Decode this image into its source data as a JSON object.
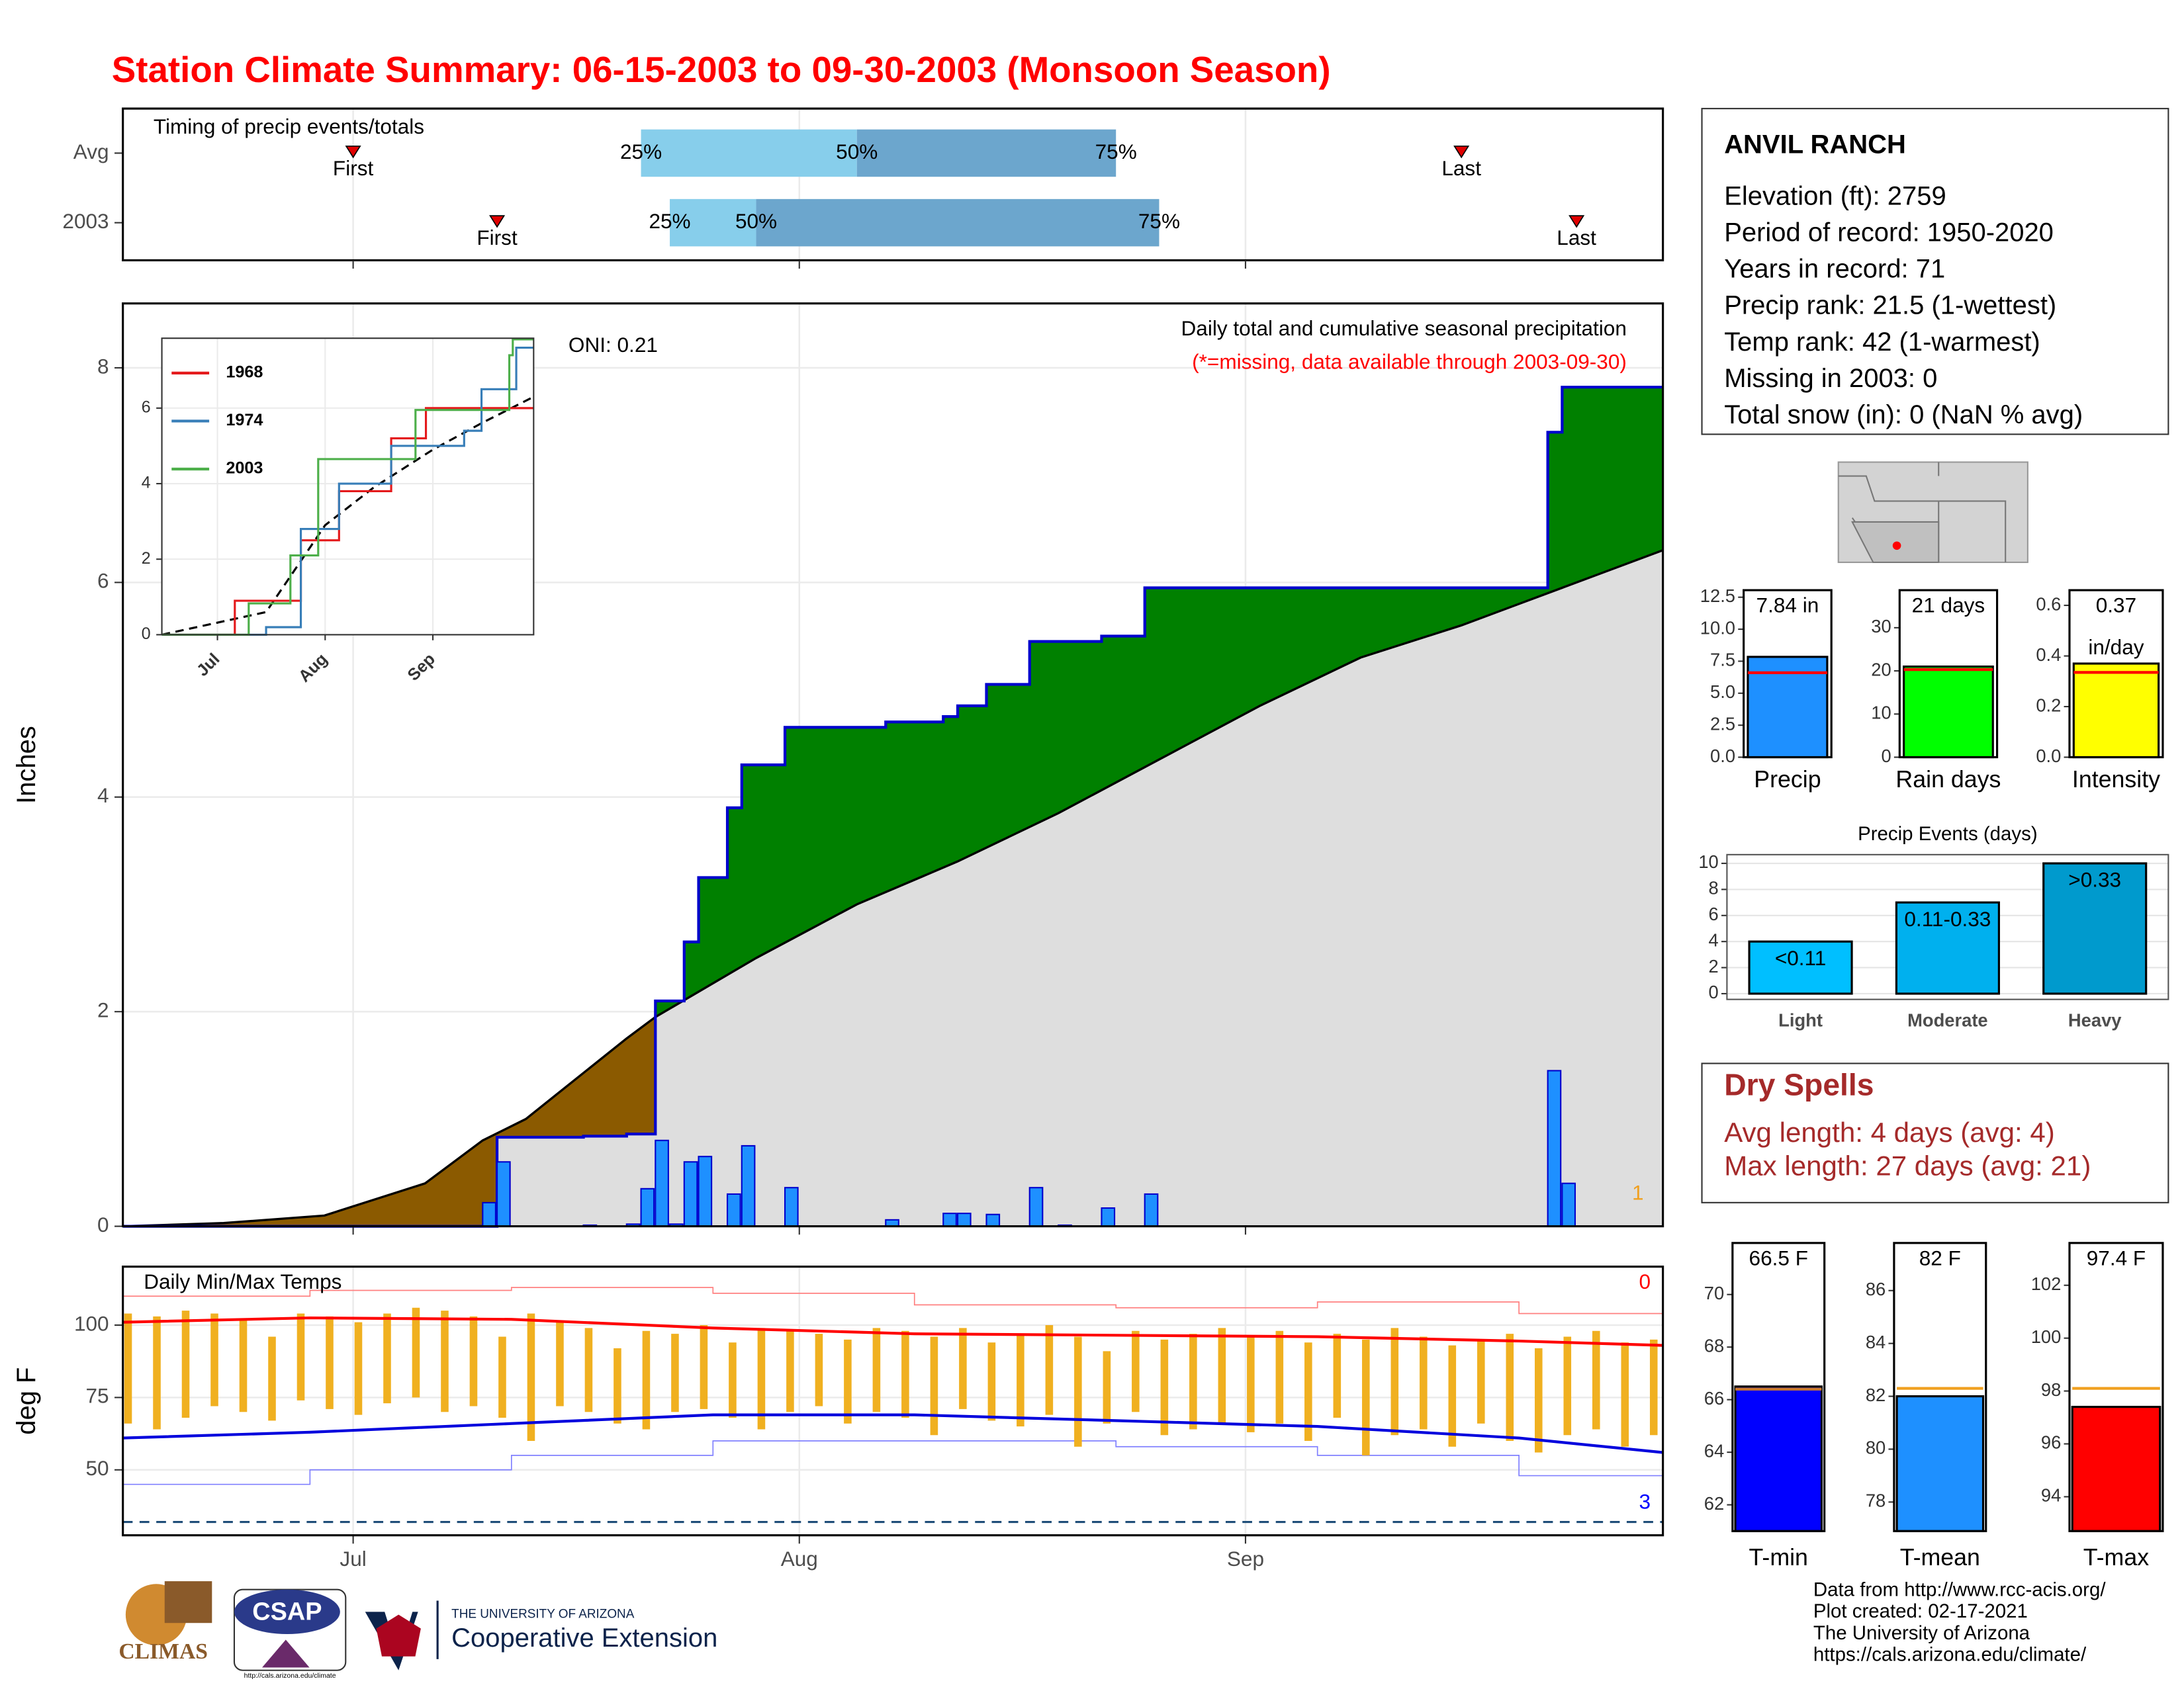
{
  "title": "Station Climate Summary: 06-15-2003 to 09-30-2003 (Monsoon Season)",
  "chart_data": [
    {
      "type": "timing",
      "title": "Timing of precip events/totals",
      "categories": [
        "Avg",
        "2003"
      ],
      "series": [
        {
          "name": "First",
          "values": [
            "2003-07-01",
            "2003-07-11"
          ]
        },
        {
          "name": "25%",
          "values": [
            "2003-07-21",
            "2003-07-23"
          ]
        },
        {
          "name": "50%",
          "values": [
            "2003-08-05",
            "2003-07-29"
          ]
        },
        {
          "name": "75%",
          "values": [
            "2003-08-23",
            "2003-08-26"
          ]
        },
        {
          "name": "Last",
          "values": [
            "2003-09-16",
            "2003-09-24"
          ]
        }
      ],
      "colors": [
        "#87ceeb",
        "#6ca6cd"
      ],
      "marker_color": "#e00000",
      "xlim": [
        "2003-06-15",
        "2003-09-30"
      ],
      "xticks": [
        "2003-07-01",
        "2003-08-01",
        "2003-09-01"
      ],
      "grid": true
    },
    {
      "type": "cumulative",
      "title": "Daily total and cumulative seasonal precipitation",
      "subtitle": "(*=missing, data available through 2003-09-30)",
      "annotation": "ONI: 0.21",
      "y_label": "Inches",
      "count_label": "1",
      "count_color": "#f0a020",
      "xlim": [
        "2003-06-15",
        "2003-09-30"
      ],
      "xticks": [
        "2003-07-01",
        "2003-08-01",
        "2003-09-01"
      ],
      "ylim": [
        0,
        8.6
      ],
      "yticks": [
        0,
        2,
        4,
        6,
        8
      ],
      "grid": true,
      "daily": {
        "color": "#1e90ff",
        "x": [
          "2003-07-10",
          "2003-07-11",
          "2003-07-17",
          "2003-07-20",
          "2003-07-21",
          "2003-07-22",
          "2003-07-23",
          "2003-07-24",
          "2003-07-25",
          "2003-07-27",
          "2003-07-28",
          "2003-07-31",
          "2003-08-07",
          "2003-08-11",
          "2003-08-12",
          "2003-08-14",
          "2003-08-17",
          "2003-08-19",
          "2003-08-22",
          "2003-08-25",
          "2003-09-22",
          "2003-09-23"
        ],
        "values": [
          0.22,
          0.6,
          0.01,
          0.02,
          0.35,
          0.8,
          0.02,
          0.6,
          0.65,
          0.3,
          0.75,
          0.36,
          0.06,
          0.12,
          0.12,
          0.11,
          0.36,
          0.01,
          0.17,
          0.3,
          1.45,
          0.4
        ]
      },
      "cumulative": {
        "name": "2003",
        "color": "#0000cd",
        "x": [
          "2003-06-15",
          "2003-07-11",
          "2003-07-17",
          "2003-07-20",
          "2003-07-22",
          "2003-07-24",
          "2003-07-25",
          "2003-07-27",
          "2003-07-28",
          "2003-07-31",
          "2003-08-07",
          "2003-08-11",
          "2003-08-12",
          "2003-08-14",
          "2003-08-17",
          "2003-08-22",
          "2003-08-25",
          "2003-09-22",
          "2003-09-23",
          "2003-09-30"
        ],
        "values": [
          0,
          0.83,
          0.84,
          0.86,
          2.1,
          2.65,
          3.25,
          3.9,
          4.3,
          4.65,
          4.7,
          4.75,
          4.85,
          5.05,
          5.45,
          5.5,
          5.95,
          7.4,
          7.82,
          7.82
        ]
      },
      "average": {
        "color": "#dedede",
        "x": [
          "2003-06-15",
          "2003-06-22",
          "2003-06-29",
          "2003-07-06",
          "2003-07-10",
          "2003-07-13",
          "2003-07-20",
          "2003-07-22",
          "2003-07-29",
          "2003-08-05",
          "2003-08-12",
          "2003-08-19",
          "2003-08-26",
          "2003-09-02",
          "2003-09-09",
          "2003-09-16",
          "2003-09-23",
          "2003-09-30"
        ],
        "values": [
          0,
          0.03,
          0.1,
          0.4,
          0.8,
          1.0,
          1.75,
          1.95,
          2.5,
          3.0,
          3.4,
          3.85,
          4.35,
          4.85,
          5.3,
          5.6,
          5.95,
          6.3
        ]
      },
      "above_color": "#008000",
      "below_color": "#8b5a00"
    },
    {
      "type": "line",
      "xlim": [
        "2003-06-15",
        "2003-09-30"
      ],
      "xticks": [
        {
          "value": "2003-07-01",
          "label": "Jul"
        },
        {
          "value": "2003-08-01",
          "label": "Aug"
        },
        {
          "value": "2003-09-01",
          "label": "Sep"
        }
      ],
      "ylim": [
        0,
        7.85
      ],
      "yticks": [
        0,
        2,
        4,
        6
      ],
      "grid": true,
      "series": [
        {
          "name": "1968",
          "color": "#e41a1c",
          "x": [
            "2003-06-15",
            "2003-07-05",
            "2003-07-06",
            "2003-07-20",
            "2003-07-25",
            "2003-08-05",
            "2003-08-20",
            "2003-08-30",
            "2003-09-30"
          ],
          "values": [
            0,
            0,
            0.9,
            0.9,
            2.5,
            3.8,
            5.2,
            6.0,
            6.0
          ]
        },
        {
          "name": "1974",
          "color": "#377eb8",
          "x": [
            "2003-06-15",
            "2003-07-15",
            "2003-07-25",
            "2003-08-05",
            "2003-08-20",
            "2003-09-10",
            "2003-09-15",
            "2003-09-25",
            "2003-09-30"
          ],
          "values": [
            0,
            0.2,
            2.8,
            4.0,
            5.0,
            5.4,
            6.5,
            7.6,
            7.6
          ]
        },
        {
          "name": "2003",
          "color": "#4daf4a",
          "x": [
            "2003-06-15",
            "2003-07-10",
            "2003-07-22",
            "2003-07-30",
            "2003-08-27",
            "2003-09-23",
            "2003-09-24",
            "2003-09-30"
          ],
          "values": [
            0,
            0.83,
            2.1,
            4.65,
            5.95,
            7.4,
            7.82,
            7.82
          ]
        }
      ],
      "average": {
        "color": "#000000",
        "x": [
          "2003-06-15",
          "2003-07-15",
          "2003-08-01",
          "2003-08-15",
          "2003-09-01",
          "2003-09-15",
          "2003-09-30"
        ],
        "values": [
          0,
          0.6,
          2.9,
          3.9,
          4.9,
          5.6,
          6.3
        ]
      }
    },
    {
      "type": "temps",
      "title": "Daily Min/Max Temps",
      "y_label": "deg F",
      "xlim": [
        "2003-06-15",
        "2003-09-30"
      ],
      "xticks": [
        {
          "value": "2003-07-01",
          "label": "Jul"
        },
        {
          "value": "2003-08-01",
          "label": "Aug"
        },
        {
          "value": "2003-09-01",
          "label": "Sep"
        }
      ],
      "ylim": [
        27.4,
        120.2
      ],
      "yticks": [
        50,
        75,
        100
      ],
      "grid": true,
      "bar_color": "#f0b020",
      "x": [
        "2003-06-15",
        "2003-06-17",
        "2003-06-19",
        "2003-06-21",
        "2003-06-23",
        "2003-06-25",
        "2003-06-27",
        "2003-06-29",
        "2003-07-01",
        "2003-07-03",
        "2003-07-05",
        "2003-07-07",
        "2003-07-09",
        "2003-07-11",
        "2003-07-13",
        "2003-07-15",
        "2003-07-17",
        "2003-07-19",
        "2003-07-21",
        "2003-07-23",
        "2003-07-25",
        "2003-07-27",
        "2003-07-29",
        "2003-07-31",
        "2003-08-02",
        "2003-08-04",
        "2003-08-06",
        "2003-08-08",
        "2003-08-10",
        "2003-08-12",
        "2003-08-14",
        "2003-08-16",
        "2003-08-18",
        "2003-08-20",
        "2003-08-22",
        "2003-08-24",
        "2003-08-26",
        "2003-08-28",
        "2003-08-30",
        "2003-09-01",
        "2003-09-03",
        "2003-09-05",
        "2003-09-07",
        "2003-09-09",
        "2003-09-11",
        "2003-09-13",
        "2003-09-15",
        "2003-09-17",
        "2003-09-19",
        "2003-09-21",
        "2003-09-23",
        "2003-09-25",
        "2003-09-27",
        "2003-09-29"
      ],
      "tmax": [
        104,
        103,
        105,
        104,
        102,
        96,
        104,
        103,
        101,
        104,
        106,
        105,
        103,
        96,
        104,
        101,
        99,
        92,
        98,
        97,
        100,
        94,
        99,
        98,
        97,
        95,
        99,
        98,
        96,
        99,
        94,
        97,
        100,
        96,
        91,
        98,
        95,
        97,
        99,
        96,
        98,
        94,
        97,
        95,
        99,
        96,
        93,
        95,
        97,
        92,
        96,
        98,
        94,
        95
      ],
      "tmin": [
        66,
        64,
        68,
        72,
        70,
        67,
        74,
        71,
        69,
        73,
        75,
        70,
        72,
        68,
        60,
        72,
        70,
        66,
        64,
        70,
        71,
        68,
        64,
        70,
        72,
        66,
        70,
        68,
        62,
        71,
        67,
        65,
        69,
        58,
        66,
        70,
        62,
        64,
        66,
        63,
        66,
        60,
        68,
        55,
        62,
        64,
        58,
        66,
        60,
        56,
        62,
        64,
        58,
        62
      ],
      "avg_max": {
        "color": "#ff0000",
        "x": [
          "2003-06-15",
          "2003-06-28",
          "2003-07-12",
          "2003-07-26",
          "2003-08-09",
          "2003-08-23",
          "2003-09-06",
          "2003-09-20",
          "2003-09-30"
        ],
        "values": [
          101,
          102.5,
          102,
          99,
          97,
          96.5,
          96,
          94.5,
          93
        ]
      },
      "avg_min": {
        "color": "#0000dd",
        "x": [
          "2003-06-15",
          "2003-06-28",
          "2003-07-12",
          "2003-07-26",
          "2003-08-09",
          "2003-08-23",
          "2003-09-06",
          "2003-09-20",
          "2003-09-30"
        ],
        "values": [
          61,
          63,
          66,
          69,
          69,
          67,
          65,
          61,
          56
        ]
      },
      "rec_max": {
        "color": "#ff8080",
        "x": [
          "2003-06-15",
          "2003-06-28",
          "2003-07-12",
          "2003-07-26",
          "2003-08-09",
          "2003-08-23",
          "2003-09-06",
          "2003-09-20",
          "2003-09-30"
        ],
        "values": [
          110,
          112,
          113,
          111,
          107,
          106,
          108,
          104,
          104
        ]
      },
      "rec_min": {
        "color": "#8080ff",
        "x": [
          "2003-06-15",
          "2003-06-28",
          "2003-07-12",
          "2003-07-26",
          "2003-08-09",
          "2003-08-23",
          "2003-09-06",
          "2003-09-20",
          "2003-09-30"
        ],
        "values": [
          45,
          50,
          55,
          60,
          60,
          58,
          55,
          48,
          44
        ]
      },
      "freeze_line": 32,
      "annotations": [
        {
          "text": "0",
          "color": "#ff0000"
        },
        {
          "text": "3",
          "color": "#0000ff"
        }
      ]
    },
    {
      "type": "bar",
      "label": "Precip",
      "values": [
        7.84
      ],
      "value_labels": [
        "7.84 in"
      ],
      "color": "#1e90ff",
      "avg": 6.6,
      "avg_color": "#ff0000",
      "ylim": [
        0,
        13.05
      ],
      "yticks": [
        {
          "value": 0,
          "label": "0.0"
        },
        2.5,
        {
          "value": 5,
          "label": "5.0"
        },
        7.5,
        {
          "value": 10,
          "label": "10.0"
        },
        12.5
      ]
    },
    {
      "type": "bar",
      "label": "Rain days",
      "values": [
        21
      ],
      "value_labels": [
        "21 days"
      ],
      "color": "#00ff00",
      "avg": 20.3,
      "avg_color": "#ff0000",
      "ylim": [
        0,
        38.7
      ],
      "yticks": [
        0,
        10,
        20,
        30
      ]
    },
    {
      "type": "bar",
      "label": "Intensity",
      "values": [
        0.37
      ],
      "value_labels": [
        "0.37"
      ],
      "unit": "in/day",
      "color": "#ffff00",
      "avg": 0.335,
      "avg_color": "#ff0000",
      "ylim": [
        0,
        0.66
      ],
      "yticks": [
        {
          "value": 0,
          "label": "0.0"
        },
        0.2,
        0.4,
        0.6
      ]
    },
    {
      "type": "bar",
      "title": "Precip Events (days)",
      "categories": [
        "Light",
        "Moderate",
        "Heavy"
      ],
      "values": [
        4,
        7,
        10
      ],
      "value_labels": [
        "<0.11",
        "0.11-0.33",
        ">0.33"
      ],
      "colors": [
        "#00bfff",
        "#00b0ee",
        "#009acd"
      ],
      "ylim": [
        -0.44,
        10.67
      ],
      "yticks": [
        0,
        2,
        4,
        6,
        8,
        10
      ],
      "grid": true
    },
    {
      "type": "bar",
      "label": "T-min",
      "values": [
        66.5
      ],
      "value_labels": [
        "66.5 F"
      ],
      "color": "#0000ff",
      "avg": 66.4,
      "avg_color": "#c87830",
      "ylim": [
        61,
        71.96
      ],
      "yticks": [
        62,
        64,
        66,
        68,
        70
      ]
    },
    {
      "type": "bar",
      "label": "T-mean",
      "values": [
        82
      ],
      "value_labels": [
        "82 F"
      ],
      "color": "#1e90ff",
      "avg": 82.3,
      "avg_color": "#f0a020",
      "ylim": [
        76.9,
        87.8
      ],
      "yticks": [
        78,
        80,
        82,
        84,
        86
      ]
    },
    {
      "type": "bar",
      "label": "T-max",
      "values": [
        97.4
      ],
      "value_labels": [
        "97.4 F"
      ],
      "color": "#ff0000",
      "avg": 98.1,
      "avg_color": "#f0a020",
      "ylim": [
        92.7,
        103.6
      ],
      "yticks": [
        94,
        96,
        98,
        100,
        102
      ]
    }
  ],
  "station": {
    "name": "ANVIL RANCH",
    "lines": [
      "Elevation (ft): 2759",
      "Period of record: 1950-2020",
      "Years in record: 71",
      "Precip rank: 21.5 (1-wettest)",
      "Temp rank: 42 (1-warmest)",
      "Missing in 2003: 0",
      "Total snow (in): 0 (NaN % avg)"
    ]
  },
  "dry_spells": {
    "title": "Dry Spells",
    "lines": [
      "Avg length: 4 days (avg: 4)",
      "Max length: 27 days (avg: 21)"
    ],
    "color": "#a52a2a"
  },
  "footer": {
    "credits": [
      "Data from http://www.rcc-acis.org/",
      "Plot created: 02-17-2021",
      "The University of Arizona",
      "https://cals.arizona.edu/climate/"
    ],
    "logos": [
      "CLIMAS",
      "CSAP",
      "http://cals.arizona.edu/climate",
      "THE UNIVERSITY OF ARIZONA",
      "Cooperative Extension"
    ]
  }
}
